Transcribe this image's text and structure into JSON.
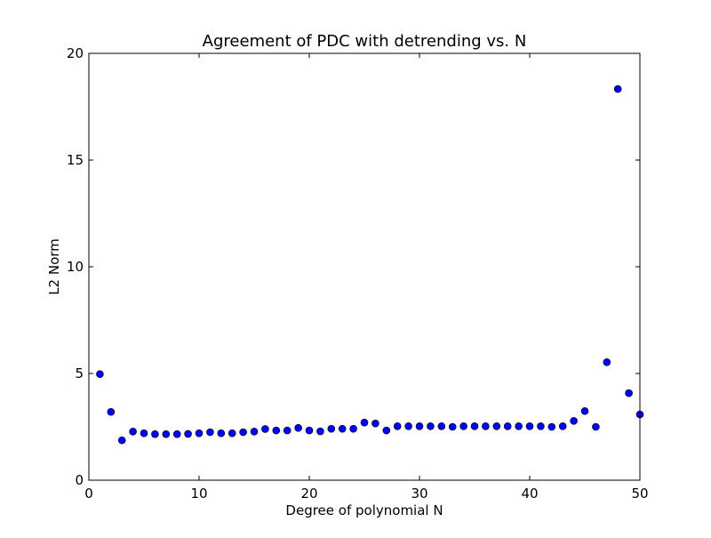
{
  "chart_data": {
    "type": "scatter",
    "title": "Agreement of PDC with detrending vs. N",
    "xlabel": "Degree of polynomial N",
    "ylabel": "L2 Norm",
    "xlim": [
      0,
      50
    ],
    "ylim": [
      0,
      20
    ],
    "xticks": [
      0,
      10,
      20,
      30,
      40,
      50
    ],
    "yticks": [
      0,
      5,
      10,
      15,
      20
    ],
    "xtick_labels": [
      "0",
      "10",
      "20",
      "30",
      "40",
      "50"
    ],
    "ytick_labels": [
      "0",
      "5",
      "10",
      "15",
      "20"
    ],
    "grid": false,
    "marker_color": "#0000ff",
    "marker_edge_color": "#000000",
    "series": [
      {
        "x": [
          1,
          2,
          3,
          4,
          5,
          6,
          7,
          8,
          9,
          10,
          11,
          12,
          13,
          14,
          15,
          16,
          17,
          18,
          19,
          20,
          21,
          22,
          23,
          24,
          25,
          26,
          27,
          28,
          29,
          30,
          31,
          32,
          33,
          34,
          35,
          36,
          37,
          38,
          39,
          40,
          41,
          42,
          43,
          44,
          45,
          46,
          47,
          48,
          49,
          50
        ],
        "values": [
          4.97,
          3.2,
          1.87,
          2.28,
          2.2,
          2.16,
          2.16,
          2.16,
          2.17,
          2.2,
          2.25,
          2.2,
          2.2,
          2.25,
          2.28,
          2.4,
          2.33,
          2.33,
          2.45,
          2.33,
          2.29,
          2.41,
          2.41,
          2.41,
          2.7,
          2.66,
          2.33,
          2.53,
          2.53,
          2.53,
          2.53,
          2.53,
          2.5,
          2.53,
          2.53,
          2.53,
          2.53,
          2.53,
          2.53,
          2.53,
          2.53,
          2.5,
          2.53,
          2.78,
          3.24,
          2.5,
          5.53,
          18.33,
          4.08,
          3.08
        ]
      }
    ]
  }
}
